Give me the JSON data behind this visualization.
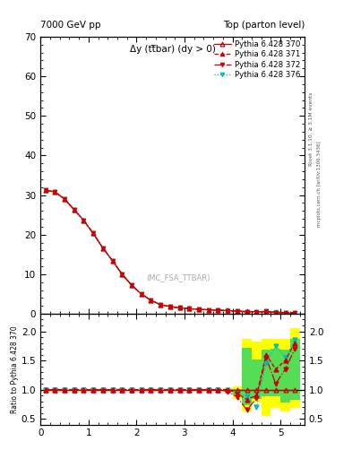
{
  "title_left": "7000 GeV pp",
  "title_right": "Top (parton level)",
  "plot_title": "Δy (tt̅bar) (dy > 0)",
  "ylabel_ratio": "Ratio to Pythia 6.428 370",
  "right_label_1": "Rivet 3.1.10, ≥ 3.1M events",
  "right_label_2": "mcplots.cern.ch [arXiv:1306.3436]",
  "watermark": "(MC_FSA_TTBAR)",
  "legend_entries": [
    "Pythia 6.428 370",
    "Pythia 6.428 371",
    "Pythia 6.428 372",
    "Pythia 6.428 376"
  ],
  "line_colors": [
    "#cc0000",
    "#cc0000",
    "#cc0000",
    "#00bbbb"
  ],
  "line_styles": [
    "-",
    "--",
    "-.",
    ":"
  ],
  "ylim_main": [
    0,
    70
  ],
  "ylim_ratio": [
    0.4,
    2.3
  ],
  "ratio_yticks": [
    0.5,
    1.0,
    1.5,
    2.0
  ],
  "xlim": [
    0,
    5.5
  ],
  "x_ticks": [
    0,
    1,
    2,
    3,
    4,
    5
  ],
  "main_yticks": [
    0,
    10,
    20,
    30,
    40,
    50,
    60,
    70
  ],
  "x_values": [
    0.1,
    0.3,
    0.5,
    0.7,
    0.9,
    1.1,
    1.3,
    1.5,
    1.7,
    1.9,
    2.1,
    2.3,
    2.5,
    2.7,
    2.9,
    3.1,
    3.3,
    3.5,
    3.7,
    3.9,
    4.1,
    4.3,
    4.5,
    4.7,
    4.9,
    5.1,
    5.3
  ],
  "main_values_370": [
    31.2,
    30.8,
    29.0,
    26.3,
    23.6,
    20.3,
    16.6,
    13.4,
    10.0,
    7.2,
    5.0,
    3.4,
    2.3,
    1.8,
    1.5,
    1.3,
    1.1,
    1.0,
    0.9,
    0.8,
    0.7,
    0.6,
    0.5,
    0.4,
    0.3,
    0.2,
    0.15
  ],
  "ratio_371": [
    1.0,
    1.0,
    1.0,
    1.0,
    1.0,
    1.0,
    1.0,
    1.0,
    1.0,
    1.0,
    1.0,
    1.0,
    1.0,
    1.0,
    1.0,
    1.0,
    1.0,
    1.0,
    1.0,
    1.0,
    0.93,
    0.83,
    0.9,
    1.6,
    1.35,
    1.5,
    1.8
  ],
  "ratio_372": [
    1.0,
    1.0,
    1.0,
    1.0,
    1.0,
    1.0,
    1.0,
    1.0,
    1.0,
    1.0,
    1.0,
    1.0,
    1.0,
    1.0,
    1.0,
    1.0,
    1.0,
    1.0,
    1.0,
    0.97,
    0.87,
    0.65,
    0.85,
    1.55,
    1.1,
    1.35,
    1.7
  ],
  "ratio_376": [
    1.0,
    1.0,
    1.0,
    1.0,
    1.0,
    1.0,
    1.0,
    1.0,
    1.0,
    1.0,
    1.0,
    1.0,
    1.0,
    1.0,
    1.0,
    1.0,
    1.0,
    1.0,
    1.0,
    1.0,
    0.95,
    0.88,
    0.7,
    1.45,
    1.75,
    1.55,
    1.85
  ],
  "band_yellow_low": [
    1.0,
    1.0,
    1.0,
    1.0,
    1.0,
    1.0,
    1.0,
    1.0,
    1.0,
    1.0,
    1.0,
    1.0,
    1.0,
    1.0,
    1.0,
    1.0,
    1.0,
    1.0,
    1.0,
    0.97,
    0.84,
    0.63,
    0.78,
    0.55,
    0.68,
    0.63,
    0.68
  ],
  "band_yellow_high": [
    1.0,
    1.0,
    1.0,
    1.0,
    1.0,
    1.0,
    1.0,
    1.0,
    1.0,
    1.0,
    1.0,
    1.0,
    1.0,
    1.0,
    1.0,
    1.0,
    1.0,
    1.0,
    1.0,
    1.02,
    1.06,
    1.87,
    1.82,
    1.87,
    1.87,
    1.87,
    2.05
  ],
  "band_green_low": [
    1.0,
    1.0,
    1.0,
    1.0,
    1.0,
    1.0,
    1.0,
    1.0,
    1.0,
    1.0,
    1.0,
    1.0,
    1.0,
    1.0,
    1.0,
    1.0,
    1.0,
    1.0,
    1.0,
    0.985,
    0.9,
    0.73,
    0.84,
    0.88,
    0.88,
    0.78,
    0.83
  ],
  "band_green_high": [
    1.0,
    1.0,
    1.0,
    1.0,
    1.0,
    1.0,
    1.0,
    1.0,
    1.0,
    1.0,
    1.0,
    1.0,
    1.0,
    1.0,
    1.0,
    1.0,
    1.0,
    1.0,
    1.0,
    1.01,
    1.01,
    1.72,
    1.52,
    1.68,
    1.7,
    1.68,
    1.87
  ],
  "bg_color": "#ffffff"
}
